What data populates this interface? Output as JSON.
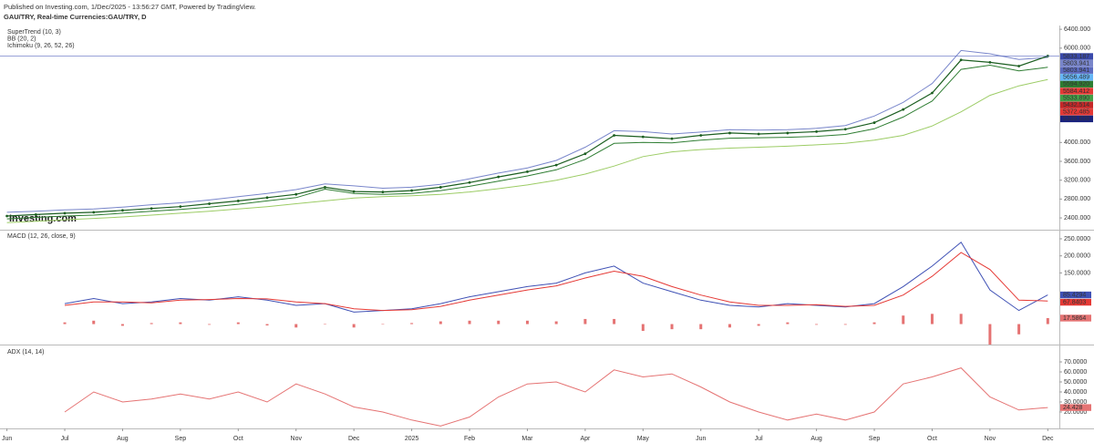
{
  "header": {
    "published": "Published on Investing.com, 1/Dec/2025 - 13:56:27 GMT, Powered by TradingView.",
    "symbol": "GAU/TRY, Real-time Currencies:GAU/TRY, D"
  },
  "watermark": "Investing.com",
  "chart_data": [
    {
      "type": "line",
      "x": [
        0,
        0.5,
        1,
        1.5,
        2,
        2.5,
        3,
        3.5,
        4,
        4.5,
        5,
        5.5,
        6,
        6.5,
        7,
        7.5,
        8,
        8.5,
        9,
        9.5,
        10,
        10.5,
        11,
        11.5,
        12,
        12.5,
        13,
        13.5,
        14,
        14.5,
        15,
        15.5,
        16,
        16.5,
        17,
        17.5,
        18
      ],
      "values": [
        2440,
        2470,
        2500,
        2520,
        2560,
        2600,
        2640,
        2700,
        2760,
        2830,
        2900,
        3050,
        2960,
        2950,
        2980,
        3050,
        3150,
        3270,
        3380,
        3520,
        3760,
        4150,
        4120,
        4080,
        4150,
        4200,
        4180,
        4200,
        4230,
        4280,
        4420,
        4700,
        5050,
        5750,
        5700,
        5620,
        5833.187
      ],
      "color": "#1b5e20",
      "price_line_color": "#5c6bc0",
      "series": [
        {
          "name": "SuperTrend (10, 3)",
          "color": "#2e7d32",
          "values": [
            2380,
            2410,
            2440,
            2460,
            2500,
            2540,
            2580,
            2630,
            2690,
            2760,
            2830,
            3010,
            2920,
            2900,
            2920,
            2980,
            3070,
            3180,
            3290,
            3420,
            3640,
            3980,
            4000,
            3990,
            4050,
            4090,
            4100,
            4110,
            4130,
            4170,
            4290,
            4540,
            4880,
            5550,
            5640,
            5520,
            5594.92
          ]
        },
        {
          "name": "BB (20, 2)",
          "color": "#7986cb",
          "values": [
            2520,
            2540,
            2570,
            2590,
            2630,
            2680,
            2720,
            2780,
            2850,
            2920,
            3000,
            3120,
            3080,
            3030,
            3050,
            3110,
            3230,
            3350,
            3460,
            3620,
            3900,
            4250,
            4230,
            4180,
            4220,
            4270,
            4260,
            4270,
            4300,
            4360,
            4560,
            4850,
            5250,
            5950,
            5880,
            5760,
            5803.941
          ]
        },
        {
          "name": "Ichimoku (9, 26, 52, 26)",
          "color": "#9ccc65",
          "values": [
            2300,
            2330,
            2360,
            2390,
            2420,
            2460,
            2500,
            2540,
            2590,
            2640,
            2700,
            2760,
            2820,
            2850,
            2870,
            2900,
            2950,
            3020,
            3100,
            3200,
            3330,
            3500,
            3700,
            3800,
            3850,
            3880,
            3900,
            3920,
            3950,
            3980,
            4050,
            4150,
            4350,
            4650,
            5000,
            5200,
            5335.658
          ]
        }
      ],
      "price_labels": [
        {
          "value": 5833.187,
          "color": "#3949ab"
        },
        {
          "value": 5803.941,
          "color": "#7986cb"
        },
        {
          "value": 5803.941,
          "color": "#5c6bc0"
        },
        {
          "value": 5656.489,
          "color": "#64b5f6"
        },
        {
          "value": 5594.92,
          "label": "5594.920",
          "color": "#2e7d32"
        },
        {
          "value": 5584.412,
          "color": "#e53935"
        },
        {
          "value": 5533.89,
          "label": "5533.890",
          "color": "#43a047"
        },
        {
          "value": 5432.514,
          "color": "#c62828"
        },
        {
          "value": 5372.485,
          "color": "#e53935"
        },
        {
          "value": 5335.658,
          "color": "#1a237e"
        }
      ],
      "xlim": [
        -0.12,
        18.2
      ],
      "ylim": [
        2150,
        6480
      ],
      "yticks": [
        {
          "value": 2400,
          "label": "2400.000"
        },
        {
          "value": 2800,
          "label": "2800.000"
        },
        {
          "value": 3200,
          "label": "3200.000"
        },
        {
          "value": 3600,
          "label": "3600.000"
        },
        {
          "value": 4000,
          "label": "4000.000"
        },
        {
          "value": 6000,
          "label": "6000.000"
        },
        {
          "value": 6400,
          "label": "6400.000"
        }
      ]
    },
    {
      "type": "line",
      "title": "MACD (12, 26, close, 9)",
      "x": [
        1,
        1.5,
        2,
        2.5,
        3,
        3.5,
        4,
        4.5,
        5,
        5.5,
        6,
        6.5,
        7,
        7.5,
        8,
        8.5,
        9,
        9.5,
        10,
        10.5,
        11,
        11.5,
        12,
        12.5,
        13,
        13.5,
        14,
        14.5,
        15,
        15.5,
        16,
        16.5,
        17,
        17.5,
        18
      ],
      "series": [
        {
          "color": "#3f51b5",
          "values": [
            60,
            75,
            60,
            65,
            75,
            70,
            80,
            70,
            55,
            60,
            35,
            40,
            45,
            60,
            80,
            95,
            110,
            120,
            150,
            170,
            120,
            95,
            70,
            55,
            50,
            60,
            55,
            50,
            60,
            110,
            170,
            240,
            100,
            40,
            85.4294
          ]
        },
        {
          "color": "#e53935",
          "values": [
            55,
            65,
            65,
            62,
            70,
            72,
            75,
            74,
            65,
            60,
            45,
            40,
            42,
            52,
            70,
            85,
            100,
            112,
            135,
            155,
            140,
            110,
            85,
            65,
            55,
            55,
            57,
            52,
            55,
            85,
            140,
            210,
            160,
            70,
            67.8403
          ]
        },
        {
          "color": "#e57373",
          "style": "histogram",
          "values": [
            5,
            10,
            -5,
            3,
            5,
            -2,
            5,
            -4,
            -10,
            0,
            -10,
            0,
            3,
            8,
            10,
            10,
            10,
            8,
            15,
            15,
            -20,
            -15,
            -15,
            -10,
            -5,
            5,
            -2,
            -2,
            5,
            25,
            30,
            30,
            -60,
            -30,
            17.5864
          ]
        }
      ],
      "xlim": [
        -0.12,
        18.2
      ],
      "ylim": [
        -60,
        274
      ],
      "yticks": [
        {
          "value": 150,
          "label": "150.0000"
        },
        {
          "value": 200,
          "label": "200.0000"
        },
        {
          "value": 250,
          "label": "250.0000"
        }
      ]
    },
    {
      "type": "line",
      "title": "ADX (14, 14)",
      "x": [
        1,
        1.5,
        2,
        2.5,
        3,
        3.5,
        4,
        4.5,
        5,
        5.5,
        6,
        6.5,
        7,
        7.5,
        8,
        8.5,
        9,
        9.5,
        10,
        10.5,
        11,
        11.5,
        12,
        12.5,
        13,
        13.5,
        14,
        14.5,
        15,
        15.5,
        16,
        16.5,
        17,
        17.5,
        18
      ],
      "series": [
        {
          "color": "#e57373",
          "values": [
            20,
            40,
            30,
            33,
            38,
            33,
            40,
            30,
            48,
            38,
            25,
            20,
            12,
            6,
            15,
            35,
            48,
            50,
            40,
            62,
            55,
            58,
            45,
            30,
            20,
            12,
            18,
            12,
            20,
            48,
            55,
            64,
            35,
            22,
            24.428
          ]
        }
      ],
      "xlim": [
        -0.12,
        18.2
      ],
      "ylim": [
        3.6,
        85.5
      ],
      "yticks": [
        {
          "value": 20,
          "label": "20.0000"
        },
        {
          "value": 30,
          "label": "30.0000"
        },
        {
          "value": 40,
          "label": "40.0000"
        },
        {
          "value": 50,
          "label": "50.0000"
        },
        {
          "value": 60,
          "label": "60.0000"
        },
        {
          "value": 70,
          "label": "70.0000"
        }
      ],
      "xticks": [
        {
          "value": 0,
          "label": "Jun"
        },
        {
          "value": 1,
          "label": "Jul"
        },
        {
          "value": 2,
          "label": "Aug"
        },
        {
          "value": 3,
          "label": "Sep"
        },
        {
          "value": 4,
          "label": "Oct"
        },
        {
          "value": 5,
          "label": "Nov"
        },
        {
          "value": 6,
          "label": "Dec"
        },
        {
          "value": 7,
          "label": "2025"
        },
        {
          "value": 8,
          "label": "Feb"
        },
        {
          "value": 9,
          "label": "Mar"
        },
        {
          "value": 10,
          "label": "Apr"
        },
        {
          "value": 11,
          "label": "May"
        },
        {
          "value": 12,
          "label": "Jun"
        },
        {
          "value": 13,
          "label": "Jul"
        },
        {
          "value": 14,
          "label": "Aug"
        },
        {
          "value": 15,
          "label": "Sep"
        },
        {
          "value": 16,
          "label": "Oct"
        },
        {
          "value": 17,
          "label": "Nov"
        },
        {
          "value": 18,
          "label": "Dec"
        }
      ]
    }
  ]
}
